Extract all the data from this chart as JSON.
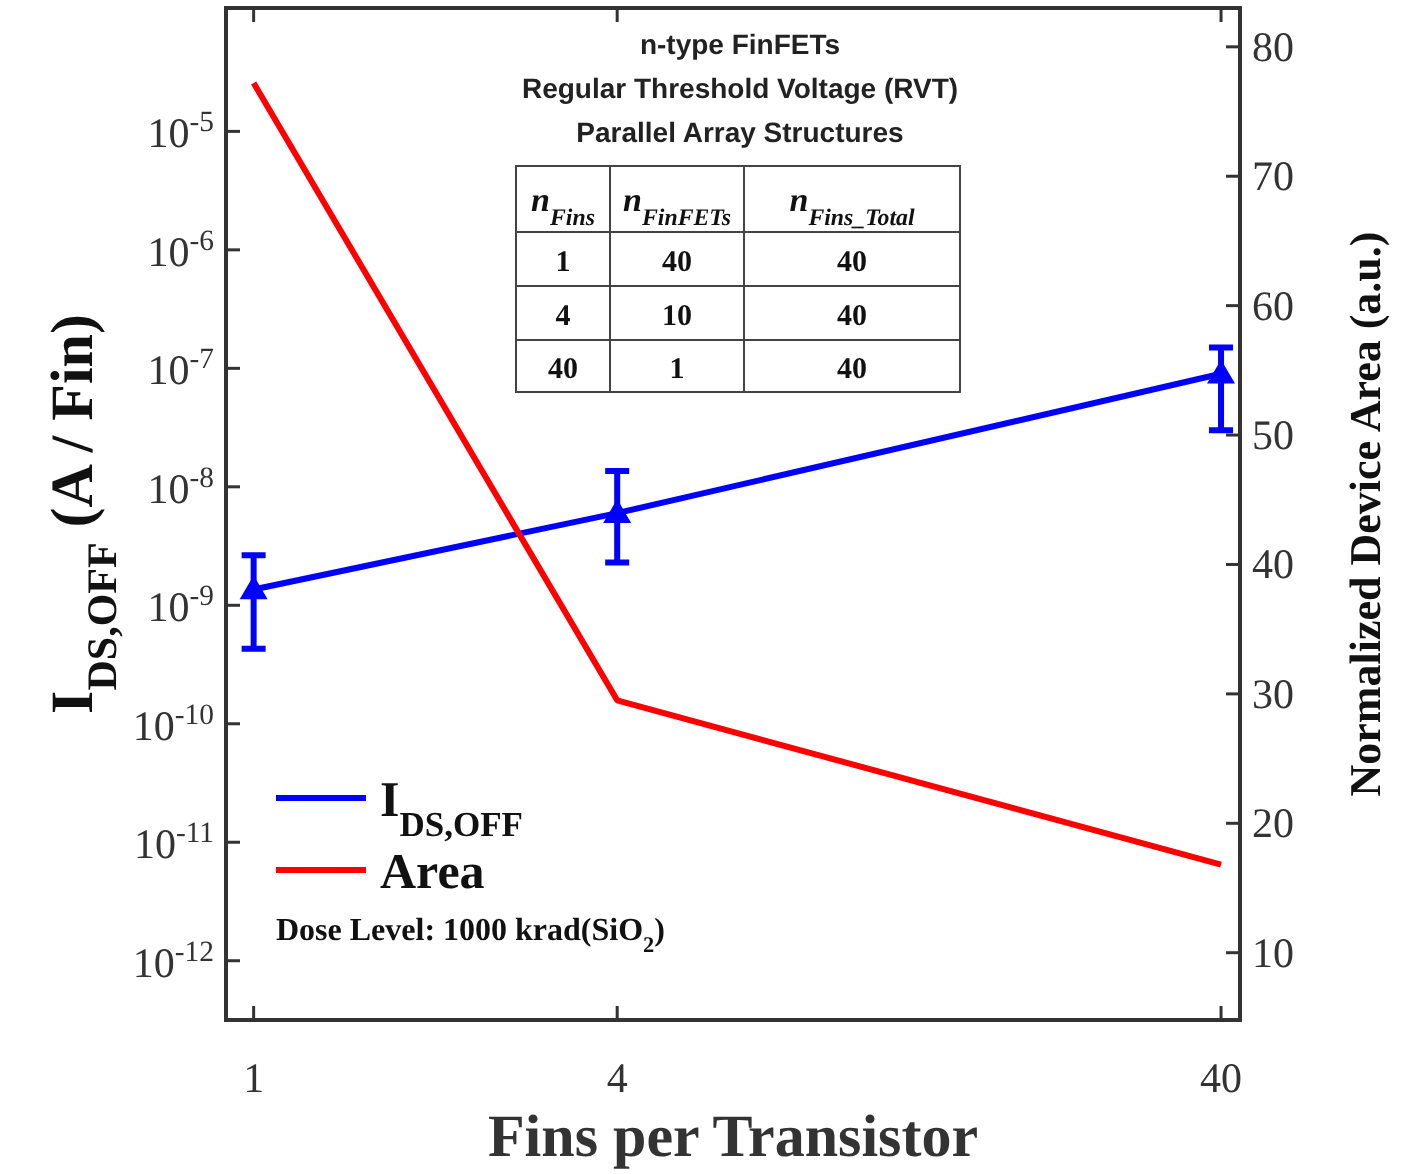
{
  "chart_data": {
    "type": "line",
    "xlabel": "Fins per Transistor",
    "ylabel": "I$_{DS,OFF}$ (A / Fin)",
    "y2label": "Normalized Device Area (a.u.)",
    "x": [
      1,
      4,
      40
    ],
    "log": "xy",
    "xlim": [
      0.9,
      43
    ],
    "xticks": [
      1,
      4,
      40
    ],
    "ylim": [
      3.16e-13,
      0.00011
    ],
    "yticks": [
      {
        "value": 1e-12,
        "label": "10$^{-12}$"
      },
      {
        "value": 1e-11,
        "label": "10$^{-11}$"
      },
      {
        "value": 1e-10,
        "label": "10$^{-10}$"
      },
      {
        "value": 1e-09,
        "label": "10$^{-9}$"
      },
      {
        "value": 1e-08,
        "label": "10$^{-8}$"
      },
      {
        "value": 1e-07,
        "label": "10$^{-7}$"
      },
      {
        "value": 1e-06,
        "label": "10$^{-6}$"
      },
      {
        "value": 1e-05,
        "label": "10$^{-5}$"
      }
    ],
    "y2lim": [
      4.8,
      83
    ],
    "y2ticks": [
      10,
      20,
      30,
      40,
      50,
      60,
      70,
      80
    ],
    "series": [
      {
        "name": "I$_{DS,OFF}$",
        "color": "#0000ff",
        "values": [
          1.36e-09,
          6e-09,
          9e-08
        ],
        "errors": [
          [
            4.3e-10,
            2.65e-09
          ],
          [
            2.3e-09,
            1.36e-08
          ],
          [
            3e-08,
            1.5e-07
          ]
        ],
        "marker": "triangle"
      },
      {
        "name": "Area",
        "color": "#ff0000",
        "values": [
          77.2,
          29.5,
          16.8
        ],
        "axis": "y2",
        "marker": "none"
      }
    ],
    "legend": "bottom left",
    "grid": false,
    "annotations": [
      "n-type FinFETs",
      "Regular Threshold Voltage (RVT)",
      "Parallel Array Structures",
      "n$_{Fins}$",
      "n$_{FinFETs}$",
      "n$_{Fins_Total}$",
      "1",
      "40",
      "40",
      "4",
      "10",
      "40",
      "40",
      "1",
      "40",
      "Dose Level: 1000 krad(SiO$_{2}$)"
    ]
  }
}
